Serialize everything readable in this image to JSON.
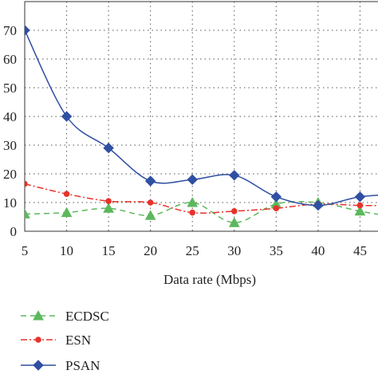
{
  "chart_data": {
    "type": "line",
    "title": "",
    "xlabel": "Data rate (Mbps)",
    "ylabel": "",
    "x": [
      5,
      10,
      15,
      20,
      25,
      30,
      35,
      40,
      45,
      50
    ],
    "x_tick_labels": [
      "5",
      "10",
      "15",
      "20",
      "25",
      "30",
      "35",
      "40",
      "45"
    ],
    "y_tick_labels": [
      "0",
      "10",
      "20",
      "30",
      "40",
      "50",
      "60",
      "70"
    ],
    "xlim": [
      5,
      50
    ],
    "ylim": [
      0,
      80
    ],
    "grid": true,
    "legend_position": "below",
    "series": [
      {
        "name": "ECDSC",
        "color": "#5cb85c",
        "line_style": "dashed",
        "marker": "triangle",
        "values": [
          6,
          6.5,
          8,
          5.5,
          10,
          3,
          9.5,
          10,
          7,
          4.5
        ]
      },
      {
        "name": "ESN",
        "color": "#e8322a",
        "line_style": "dash-dot",
        "marker": "circle",
        "values": [
          16.5,
          13,
          10.5,
          10,
          6.5,
          7,
          8,
          9.5,
          9,
          9
        ]
      },
      {
        "name": "PSAN",
        "color": "#2f4fa2",
        "line_style": "solid",
        "marker": "diamond",
        "values": [
          70,
          40,
          29,
          17.5,
          18,
          19.5,
          12,
          9,
          12,
          13
        ]
      }
    ]
  }
}
